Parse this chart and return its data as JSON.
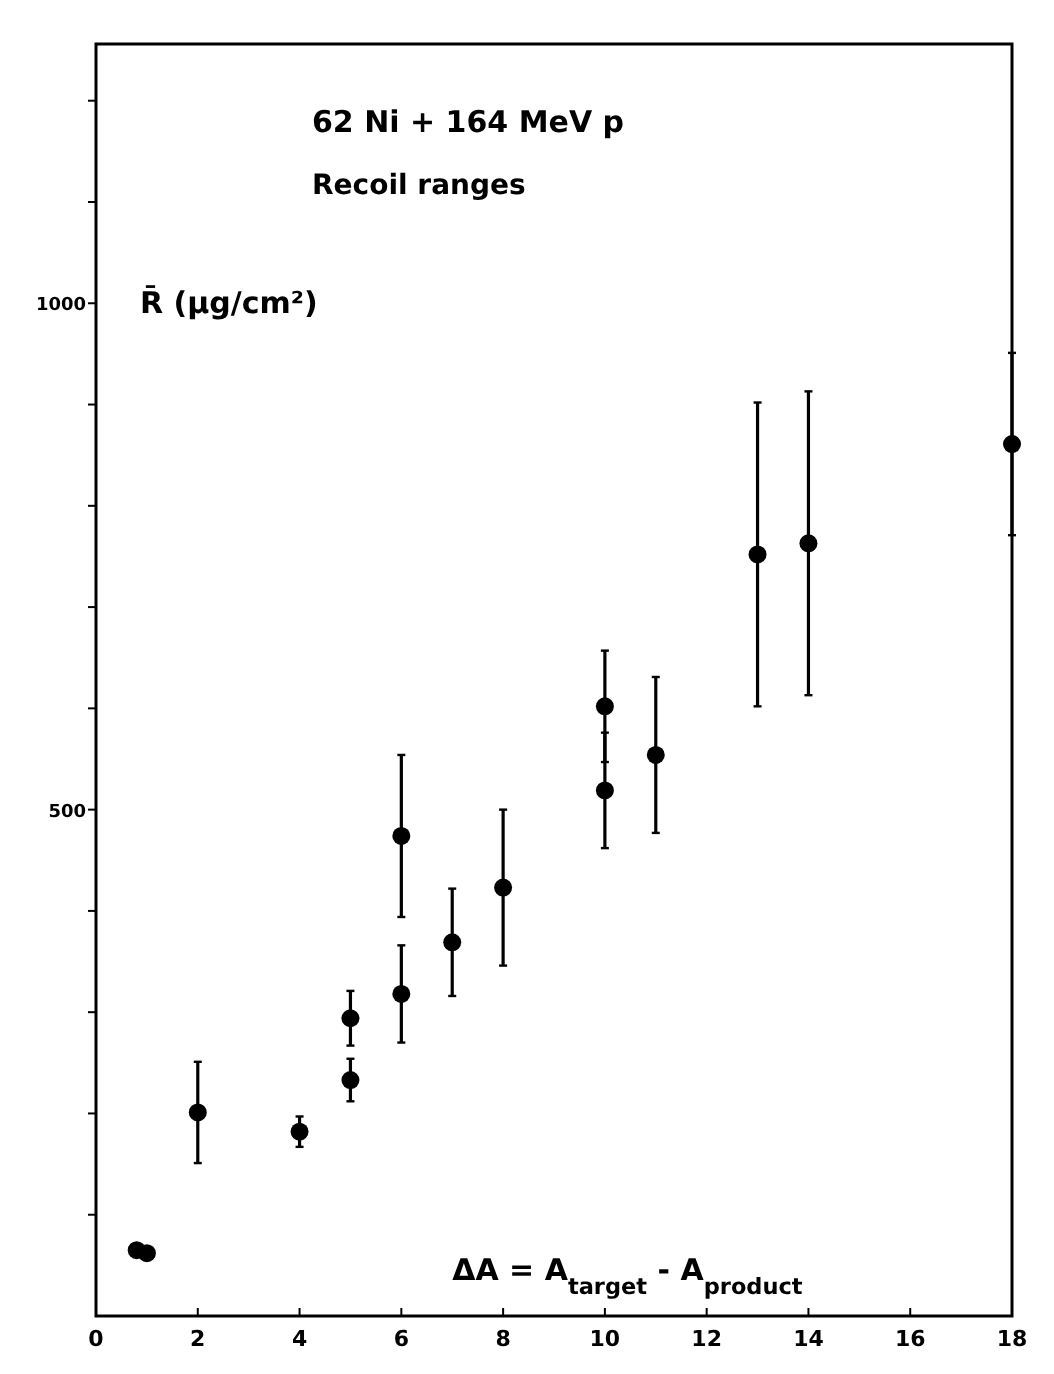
{
  "chart_data": {
    "type": "scatter",
    "title": "62 Ni + 164 MeV p",
    "subtitle": "Recoil ranges",
    "ylabel": "R̄  (μg/cm²)",
    "xlabel": "ΔA = A$_{target}$ - A$_{product}$",
    "xlim": [
      0,
      18
    ],
    "xticks": [
      0,
      2,
      4,
      6,
      8,
      10,
      12,
      14,
      16,
      18
    ],
    "ylim": [
      0,
      1256
    ],
    "yticks": [
      {
        "value": 100,
        "label": null
      },
      {
        "value": 200,
        "label": null
      },
      {
        "value": 300,
        "label": null
      },
      {
        "value": 400,
        "label": null
      },
      500,
      {
        "value": 600,
        "label": null
      },
      {
        "value": 700,
        "label": null
      },
      {
        "value": 800,
        "label": null
      },
      {
        "value": 900,
        "label": null
      },
      1000,
      {
        "value": 1100,
        "label": null
      },
      {
        "value": 1200,
        "label": null
      }
    ],
    "series": [
      {
        "color": "#000000",
        "x": [
          0.8,
          1,
          2,
          4,
          5,
          5,
          6,
          6,
          7,
          8,
          10,
          10,
          11,
          13,
          14,
          18
        ],
        "values": [
          65,
          62,
          201,
          182,
          294,
          233,
          474,
          318,
          369,
          423,
          602,
          519,
          554,
          752,
          763,
          861
        ],
        "errors": [
          null,
          null,
          50,
          15,
          27,
          21,
          80,
          48,
          53,
          77,
          55,
          57,
          77,
          150,
          150,
          90
        ]
      }
    ],
    "marker": "circle",
    "grid": false
  }
}
